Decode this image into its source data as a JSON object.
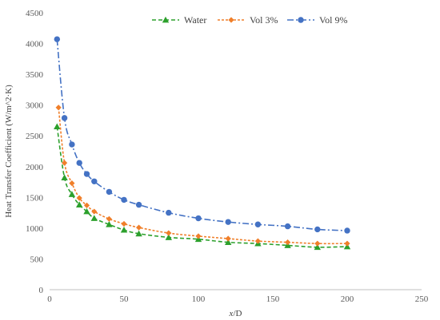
{
  "chart_data": {
    "type": "line",
    "title": "",
    "xlabel_italic": "x",
    "xlabel_rest": "/D",
    "ylabel": "Heat Transfer Coefficient (W/m^2·K)",
    "xlim": [
      0,
      250
    ],
    "ylim": [
      0,
      4500
    ],
    "x_ticks": [
      0,
      50,
      100,
      150,
      200,
      250
    ],
    "y_ticks": [
      0,
      500,
      1000,
      1500,
      2000,
      2500,
      3000,
      3500,
      4000,
      4500
    ],
    "x_tick_labels": [
      "0",
      "50",
      "100",
      "150",
      "200",
      "250"
    ],
    "y_tick_labels": [
      "0",
      "500",
      "1000",
      "1500",
      "2000",
      "2500",
      "3000",
      "3500",
      "4000",
      "4500"
    ],
    "grid": false,
    "legend_position": "top",
    "series": [
      {
        "name": "Water",
        "color": "#2ca02c",
        "marker": "triangle",
        "line_style": "dashed",
        "x": [
          5,
          10,
          15,
          20,
          25,
          30,
          40,
          50,
          60,
          80,
          100,
          120,
          140,
          160,
          180,
          200
        ],
        "y": [
          2650,
          1820,
          1550,
          1380,
          1270,
          1160,
          1060,
          970,
          910,
          850,
          820,
          770,
          750,
          720,
          690,
          700
        ]
      },
      {
        "name": "Vol 3%",
        "color": "#f07f2a",
        "marker": "diamond",
        "line_style": "dotted",
        "x": [
          6,
          10,
          15,
          20,
          25,
          30,
          40,
          50,
          60,
          80,
          100,
          120,
          140,
          160,
          180,
          200
        ],
        "y": [
          2960,
          2060,
          1730,
          1490,
          1370,
          1270,
          1150,
          1070,
          1010,
          920,
          870,
          830,
          790,
          770,
          750,
          750
        ]
      },
      {
        "name": "Vol 9%",
        "color": "#4472c4",
        "marker": "circle",
        "line_style": "dashdot",
        "x": [
          5,
          10,
          15,
          20,
          25,
          30,
          40,
          50,
          60,
          80,
          100,
          120,
          140,
          160,
          180,
          200
        ],
        "y": [
          4070,
          2790,
          2360,
          2060,
          1880,
          1760,
          1590,
          1460,
          1380,
          1250,
          1160,
          1100,
          1060,
          1030,
          980,
          960
        ]
      }
    ]
  }
}
